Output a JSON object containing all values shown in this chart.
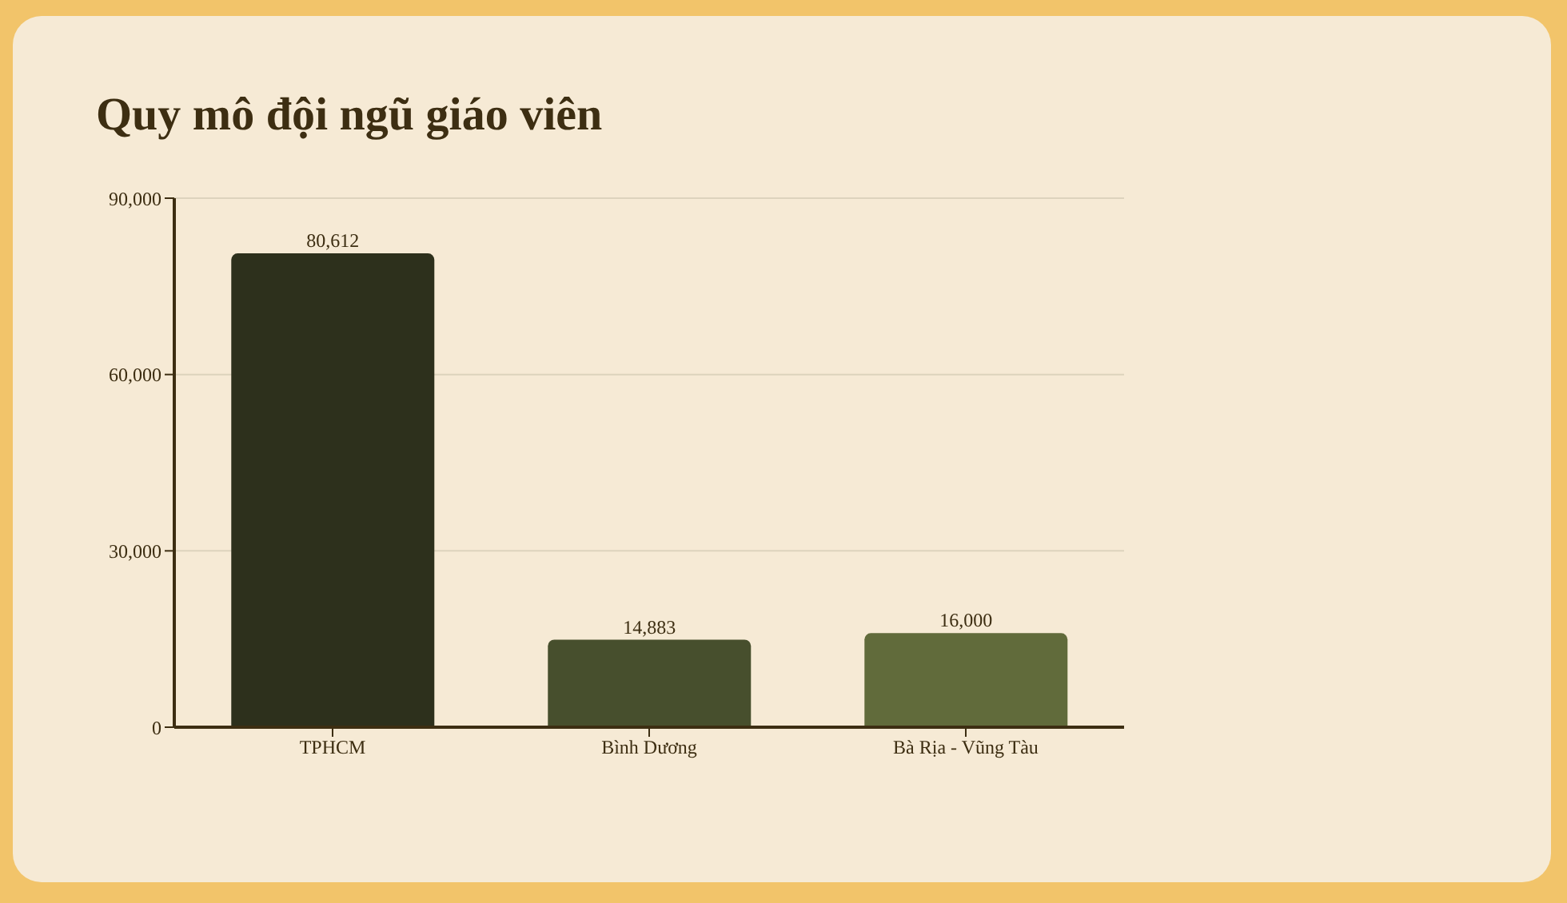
{
  "chart_data": {
    "type": "bar",
    "title": "Quy mô đội ngũ giáo viên",
    "categories": [
      "TPHCM",
      "Bình Dương",
      "Bà Rịa - Vũng Tàu"
    ],
    "values": [
      80612,
      14883,
      16000
    ],
    "colors": [
      "#2d301c",
      "#474f2d",
      "#616b3b"
    ],
    "ylim": [
      0,
      90000
    ],
    "yticks": [
      {
        "value": 0,
        "label": "0"
      },
      {
        "value": 30000,
        "label": "30,000"
      },
      {
        "value": 60000,
        "label": "60,000"
      },
      {
        "value": 90000,
        "label": "90,000"
      }
    ],
    "value_labels": [
      "80,612",
      "14,883",
      "16,000"
    ],
    "grid": "y"
  }
}
